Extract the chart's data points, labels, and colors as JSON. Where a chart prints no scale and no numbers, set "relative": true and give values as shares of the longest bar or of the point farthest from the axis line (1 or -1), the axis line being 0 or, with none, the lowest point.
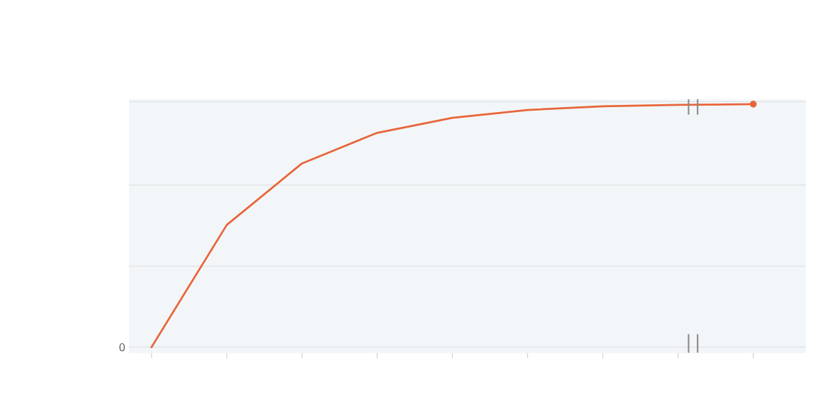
{
  "chart_data": {
    "type": "line",
    "relative": true,
    "categories": [
      null,
      null,
      null,
      null,
      null,
      null,
      null,
      null,
      null
    ],
    "series": [
      {
        "color": "#e8653a",
        "values": [
          0,
          0.503,
          0.756,
          0.882,
          0.944,
          0.976,
          0.991,
          0.997,
          1
        ]
      }
    ],
    "marker": "none",
    "line_style": "solid",
    "ref_lines": [
      {
        "axis": "y",
        "value": 0,
        "color": "#e1e4e6"
      },
      {
        "axis": "y",
        "value": 0.333,
        "color": "#e1e4e6"
      },
      {
        "axis": "y",
        "value": 0.667,
        "color": "#e1e4e6"
      },
      {
        "axis": "y",
        "value": 1.01,
        "color": "#e1e4e6"
      }
    ],
    "annotations": [
      "0"
    ]
  }
}
